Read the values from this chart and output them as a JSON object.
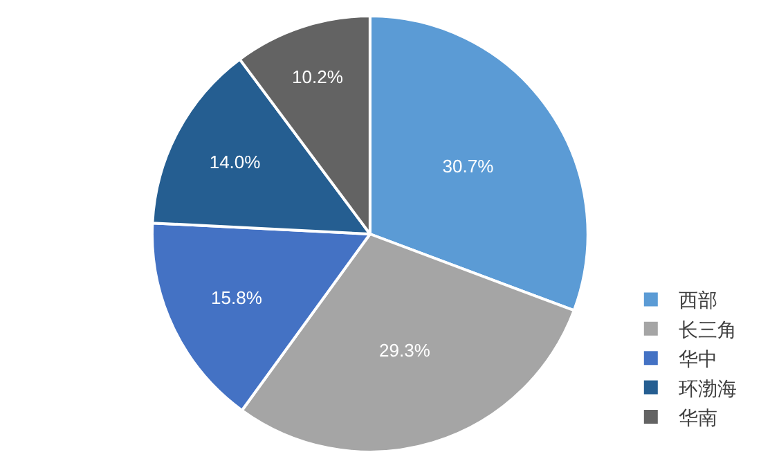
{
  "chart_data": {
    "type": "pie",
    "categories": [
      "西部",
      "长三角",
      "华中",
      "环渤海",
      "华南"
    ],
    "values": [
      30.7,
      29.3,
      15.8,
      14.0,
      10.2
    ],
    "colors": [
      "#5b9bd5",
      "#a5a5a5",
      "#4472c4",
      "#255e91",
      "#636363"
    ],
    "value_labels": [
      "30.7%",
      "29.3%",
      "15.8%",
      "14.0%",
      "10.2%"
    ],
    "legend": "bottom right"
  }
}
